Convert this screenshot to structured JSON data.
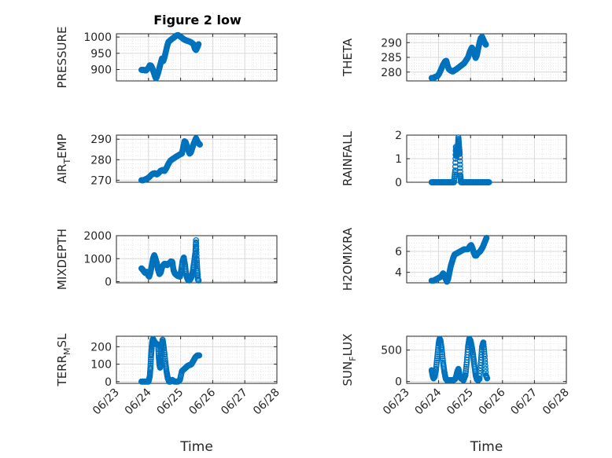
{
  "figure_title": "Figure 2 low",
  "marker_color": "#0072BD",
  "chart_data": [
    {
      "type": "scatter",
      "ylabel": "PRESSURE",
      "ylim": [
        865,
        1010
      ],
      "yticks": [
        900,
        950,
        1000
      ],
      "x_range": [
        "06/23",
        "06/28"
      ],
      "xticks": [],
      "grid": true,
      "points": [
        [
          0.0,
          899
        ],
        [
          0.05,
          899
        ],
        [
          0.1,
          898
        ],
        [
          0.14,
          897
        ],
        [
          0.18,
          901
        ],
        [
          0.22,
          905
        ],
        [
          0.26,
          913
        ],
        [
          0.3,
          912
        ],
        [
          0.34,
          904
        ],
        [
          0.38,
          892
        ],
        [
          0.42,
          880
        ],
        [
          0.45,
          873
        ],
        [
          0.48,
          878
        ],
        [
          0.52,
          890
        ],
        [
          0.56,
          905
        ],
        [
          0.6,
          920
        ],
        [
          0.64,
          934
        ],
        [
          0.68,
          926
        ],
        [
          0.72,
          938
        ],
        [
          0.76,
          955
        ],
        [
          0.8,
          972
        ],
        [
          0.84,
          985
        ],
        [
          0.9,
          990
        ],
        [
          0.96,
          995
        ],
        [
          1.02,
          999
        ],
        [
          1.08,
          1004
        ],
        [
          1.14,
          1006
        ],
        [
          1.2,
          1002
        ],
        [
          1.26,
          998
        ],
        [
          1.32,
          993
        ],
        [
          1.38,
          990
        ],
        [
          1.44,
          988
        ],
        [
          1.5,
          986
        ],
        [
          1.56,
          983
        ],
        [
          1.62,
          978
        ],
        [
          1.66,
          965
        ],
        [
          1.7,
          960
        ],
        [
          1.74,
          968
        ],
        [
          1.78,
          978
        ]
      ]
    },
    {
      "type": "scatter",
      "ylabel": "THETA",
      "ylim": [
        277,
        293
      ],
      "yticks": [
        280,
        285,
        290
      ],
      "x_range": [
        "06/23",
        "06/28"
      ],
      "xticks": [],
      "grid": true,
      "points": [
        [
          0.0,
          278
        ],
        [
          0.06,
          278
        ],
        [
          0.12,
          278.4
        ],
        [
          0.18,
          278.6
        ],
        [
          0.24,
          279.5
        ],
        [
          0.3,
          281
        ],
        [
          0.36,
          282.5
        ],
        [
          0.42,
          283.6
        ],
        [
          0.46,
          283.8
        ],
        [
          0.5,
          282.2
        ],
        [
          0.54,
          281
        ],
        [
          0.6,
          280.5
        ],
        [
          0.66,
          280.2
        ],
        [
          0.72,
          280.6
        ],
        [
          0.78,
          281
        ],
        [
          0.84,
          281.5
        ],
        [
          0.9,
          282
        ],
        [
          0.96,
          282.5
        ],
        [
          1.02,
          283
        ],
        [
          1.08,
          284
        ],
        [
          1.14,
          285
        ],
        [
          1.2,
          287
        ],
        [
          1.26,
          288.3
        ],
        [
          1.3,
          287.6
        ],
        [
          1.34,
          286
        ],
        [
          1.38,
          284.8
        ],
        [
          1.42,
          285.8
        ],
        [
          1.46,
          288
        ],
        [
          1.5,
          290
        ],
        [
          1.54,
          291.5
        ],
        [
          1.58,
          292
        ],
        [
          1.62,
          291
        ],
        [
          1.66,
          290
        ],
        [
          1.7,
          289.3
        ]
      ]
    },
    {
      "type": "scatter",
      "ylabel": "AIR_TEMP",
      "ylim": [
        269,
        292
      ],
      "yticks": [
        270,
        280,
        290
      ],
      "x_range": [
        "06/23",
        "06/28"
      ],
      "xticks": [],
      "grid": true,
      "points": [
        [
          0.0,
          270
        ],
        [
          0.06,
          270
        ],
        [
          0.12,
          270.4
        ],
        [
          0.18,
          270.8
        ],
        [
          0.24,
          271.5
        ],
        [
          0.3,
          272.5
        ],
        [
          0.36,
          273.2
        ],
        [
          0.42,
          273.4
        ],
        [
          0.48,
          272.8
        ],
        [
          0.54,
          273.6
        ],
        [
          0.6,
          274.6
        ],
        [
          0.66,
          275
        ],
        [
          0.72,
          274.5
        ],
        [
          0.78,
          276
        ],
        [
          0.84,
          278
        ],
        [
          0.9,
          279.5
        ],
        [
          0.96,
          280.2
        ],
        [
          1.02,
          280.8
        ],
        [
          1.08,
          281.5
        ],
        [
          1.14,
          282
        ],
        [
          1.2,
          282.6
        ],
        [
          1.26,
          283
        ],
        [
          1.3,
          286
        ],
        [
          1.34,
          289
        ],
        [
          1.38,
          288.5
        ],
        [
          1.42,
          286.5
        ],
        [
          1.46,
          284.5
        ],
        [
          1.5,
          283
        ],
        [
          1.54,
          283.6
        ],
        [
          1.58,
          285.5
        ],
        [
          1.62,
          287.5
        ],
        [
          1.66,
          289
        ],
        [
          1.7,
          290.5
        ],
        [
          1.74,
          289
        ],
        [
          1.78,
          288
        ],
        [
          1.82,
          287.4
        ]
      ]
    },
    {
      "type": "scatter",
      "ylabel": "RAINFALL",
      "ylim": [
        0,
        2
      ],
      "yticks": [
        0,
        1,
        2
      ],
      "x_range": [
        "06/23",
        "06/28"
      ],
      "xticks": [],
      "grid": true,
      "points": [
        [
          0.0,
          0
        ],
        [
          0.1,
          0
        ],
        [
          0.2,
          0
        ],
        [
          0.3,
          0
        ],
        [
          0.4,
          0
        ],
        [
          0.5,
          0
        ],
        [
          0.6,
          0
        ],
        [
          0.7,
          0
        ],
        [
          0.74,
          0.5
        ],
        [
          0.76,
          1.5
        ],
        [
          0.78,
          1.1
        ],
        [
          0.8,
          1.2
        ],
        [
          0.82,
          1.4
        ],
        [
          0.84,
          1.9
        ],
        [
          0.86,
          1.5
        ],
        [
          0.88,
          1.2
        ],
        [
          0.9,
          0.3
        ],
        [
          0.92,
          0
        ],
        [
          1.0,
          0
        ],
        [
          1.1,
          0
        ],
        [
          1.2,
          0
        ],
        [
          1.3,
          0
        ],
        [
          1.4,
          0
        ],
        [
          1.5,
          0
        ],
        [
          1.6,
          0
        ],
        [
          1.7,
          0
        ],
        [
          1.8,
          0
        ]
      ]
    },
    {
      "type": "scatter",
      "ylabel": "MIXDEPTH",
      "ylim": [
        -50,
        2000
      ],
      "yticks": [
        0,
        1000,
        2000
      ],
      "x_range": [
        "06/23",
        "06/28"
      ],
      "xticks": [],
      "grid": true,
      "points": [
        [
          0.0,
          580
        ],
        [
          0.04,
          520
        ],
        [
          0.08,
          440
        ],
        [
          0.12,
          380
        ],
        [
          0.16,
          430
        ],
        [
          0.2,
          300
        ],
        [
          0.24,
          220
        ],
        [
          0.28,
          400
        ],
        [
          0.32,
          700
        ],
        [
          0.36,
          1000
        ],
        [
          0.4,
          1150
        ],
        [
          0.44,
          1000
        ],
        [
          0.48,
          800
        ],
        [
          0.52,
          500
        ],
        [
          0.56,
          330
        ],
        [
          0.6,
          400
        ],
        [
          0.64,
          620
        ],
        [
          0.68,
          720
        ],
        [
          0.72,
          780
        ],
        [
          0.76,
          760
        ],
        [
          0.8,
          720
        ],
        [
          0.84,
          780
        ],
        [
          0.88,
          820
        ],
        [
          0.92,
          880
        ],
        [
          0.96,
          860
        ],
        [
          1.0,
          500
        ],
        [
          1.04,
          360
        ],
        [
          1.08,
          300
        ],
        [
          1.12,
          260
        ],
        [
          1.16,
          240
        ],
        [
          1.2,
          220
        ],
        [
          1.24,
          500
        ],
        [
          1.28,
          900
        ],
        [
          1.32,
          1050
        ],
        [
          1.36,
          700
        ],
        [
          1.4,
          250
        ],
        [
          1.44,
          100
        ],
        [
          1.48,
          50
        ],
        [
          1.52,
          100
        ],
        [
          1.56,
          200
        ],
        [
          1.6,
          450
        ],
        [
          1.64,
          850
        ],
        [
          1.68,
          1250
        ],
        [
          1.7,
          1800
        ],
        [
          1.72,
          1000
        ],
        [
          1.74,
          500
        ],
        [
          1.76,
          100
        ],
        [
          1.78,
          50
        ]
      ]
    },
    {
      "type": "scatter",
      "ylabel": "H2OMIXRA",
      "ylim": [
        3,
        7.5
      ],
      "yticks": [
        4,
        6
      ],
      "x_range": [
        "06/23",
        "06/28"
      ],
      "xticks": [],
      "grid": true,
      "points": [
        [
          0.0,
          3.2
        ],
        [
          0.06,
          3.2
        ],
        [
          0.12,
          3.3
        ],
        [
          0.18,
          3.4
        ],
        [
          0.24,
          3.5
        ],
        [
          0.3,
          3.6
        ],
        [
          0.36,
          3.9
        ],
        [
          0.4,
          3.7
        ],
        [
          0.44,
          3.4
        ],
        [
          0.48,
          3.1
        ],
        [
          0.52,
          3.4
        ],
        [
          0.56,
          4.0
        ],
        [
          0.6,
          4.6
        ],
        [
          0.64,
          5.0
        ],
        [
          0.68,
          5.4
        ],
        [
          0.72,
          5.7
        ],
        [
          0.78,
          5.8
        ],
        [
          0.84,
          5.9
        ],
        [
          0.9,
          6.0
        ],
        [
          0.96,
          6.1
        ],
        [
          1.02,
          6.2
        ],
        [
          1.08,
          6.2
        ],
        [
          1.14,
          6.2
        ],
        [
          1.2,
          6.5
        ],
        [
          1.24,
          6.6
        ],
        [
          1.28,
          6.3
        ],
        [
          1.32,
          5.9
        ],
        [
          1.36,
          5.6
        ],
        [
          1.4,
          5.6
        ],
        [
          1.44,
          5.8
        ],
        [
          1.48,
          5.9
        ],
        [
          1.52,
          6.0
        ],
        [
          1.56,
          6.2
        ],
        [
          1.6,
          6.4
        ],
        [
          1.64,
          6.7
        ],
        [
          1.68,
          7.0
        ],
        [
          1.72,
          7.3
        ]
      ]
    },
    {
      "type": "scatter",
      "ylabel": "TERR_MSL",
      "ylim": [
        -10,
        260
      ],
      "yticks": [
        0,
        100,
        200
      ],
      "x_range": [
        "06/23",
        "06/28"
      ],
      "xticks": [
        "06/23",
        "06/24",
        "06/25",
        "06/26",
        "06/27",
        "06/28"
      ],
      "xlabel": "Time",
      "grid": true,
      "points": [
        [
          0.0,
          0
        ],
        [
          0.06,
          0
        ],
        [
          0.12,
          0
        ],
        [
          0.18,
          0
        ],
        [
          0.22,
          0
        ],
        [
          0.26,
          30
        ],
        [
          0.28,
          80
        ],
        [
          0.3,
          150
        ],
        [
          0.32,
          200
        ],
        [
          0.34,
          230
        ],
        [
          0.36,
          245
        ],
        [
          0.4,
          230
        ],
        [
          0.44,
          220
        ],
        [
          0.48,
          215
        ],
        [
          0.52,
          210
        ],
        [
          0.54,
          140
        ],
        [
          0.56,
          100
        ],
        [
          0.58,
          80
        ],
        [
          0.6,
          120
        ],
        [
          0.62,
          200
        ],
        [
          0.66,
          240
        ],
        [
          0.7,
          190
        ],
        [
          0.74,
          120
        ],
        [
          0.78,
          60
        ],
        [
          0.82,
          20
        ],
        [
          0.86,
          0
        ],
        [
          0.9,
          0
        ],
        [
          0.96,
          10
        ],
        [
          1.02,
          0
        ],
        [
          1.08,
          0
        ],
        [
          1.14,
          0
        ],
        [
          1.2,
          10
        ],
        [
          1.26,
          60
        ],
        [
          1.32,
          70
        ],
        [
          1.38,
          80
        ],
        [
          1.44,
          90
        ],
        [
          1.5,
          95
        ],
        [
          1.56,
          100
        ],
        [
          1.62,
          120
        ],
        [
          1.68,
          140
        ],
        [
          1.74,
          150
        ],
        [
          1.8,
          150
        ]
      ]
    },
    {
      "type": "scatter",
      "ylabel": "SUN_FLUX",
      "ylim": [
        -30,
        720
      ],
      "yticks": [
        0,
        500
      ],
      "x_range": [
        "06/23",
        "06/28"
      ],
      "xticks": [
        "06/23",
        "06/24",
        "06/25",
        "06/26",
        "06/27",
        "06/28"
      ],
      "xlabel": "Time",
      "grid": true,
      "points": [
        [
          0.0,
          180
        ],
        [
          0.03,
          100
        ],
        [
          0.06,
          50
        ],
        [
          0.1,
          80
        ],
        [
          0.14,
          200
        ],
        [
          0.18,
          400
        ],
        [
          0.22,
          600
        ],
        [
          0.25,
          680
        ],
        [
          0.28,
          650
        ],
        [
          0.32,
          500
        ],
        [
          0.36,
          300
        ],
        [
          0.4,
          150
        ],
        [
          0.44,
          50
        ],
        [
          0.48,
          20
        ],
        [
          0.56,
          20
        ],
        [
          0.64,
          20
        ],
        [
          0.72,
          30
        ],
        [
          0.76,
          60
        ],
        [
          0.8,
          150
        ],
        [
          0.84,
          200
        ],
        [
          0.88,
          100
        ],
        [
          0.92,
          50
        ],
        [
          1.0,
          20
        ],
        [
          1.06,
          100
        ],
        [
          1.1,
          300
        ],
        [
          1.14,
          550
        ],
        [
          1.18,
          680
        ],
        [
          1.22,
          650
        ],
        [
          1.26,
          550
        ],
        [
          1.3,
          420
        ],
        [
          1.34,
          250
        ],
        [
          1.38,
          100
        ],
        [
          1.42,
          30
        ],
        [
          1.46,
          20
        ],
        [
          1.5,
          40
        ],
        [
          1.54,
          300
        ],
        [
          1.58,
          550
        ],
        [
          1.62,
          620
        ],
        [
          1.66,
          400
        ],
        [
          1.7,
          100
        ],
        [
          1.74,
          50
        ]
      ]
    }
  ]
}
